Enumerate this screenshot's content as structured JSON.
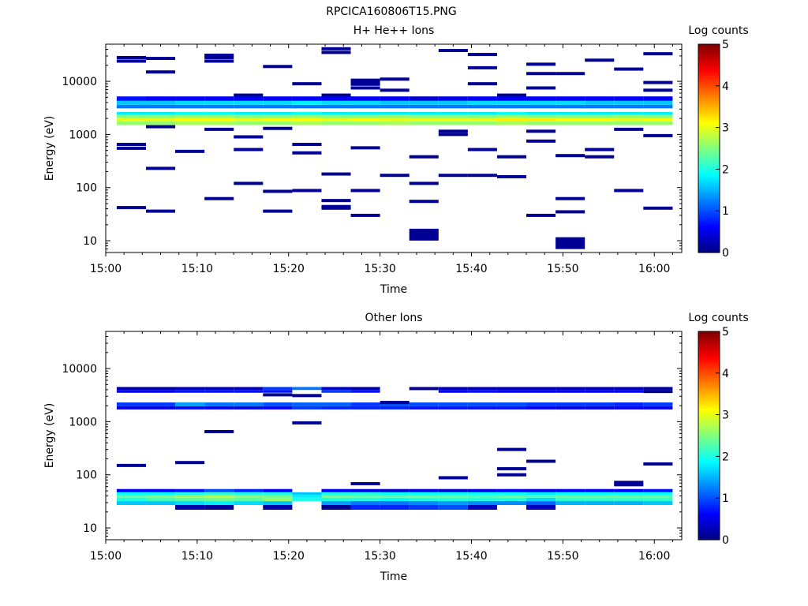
{
  "figure": {
    "title": "RPCICA160806T15.PNG"
  },
  "colorscale": {
    "label": "Log counts",
    "range": [
      0,
      5
    ],
    "ticks": [
      "0",
      "1",
      "2",
      "3",
      "4",
      "5"
    ],
    "colormap": "jet"
  },
  "chart_data": [
    {
      "type": "heatmap",
      "title": "H+ He++ Ions",
      "xlabel": "Time",
      "ylabel": "Energy (eV)",
      "x_ticks": [
        "15:00",
        "15:10",
        "15:20",
        "15:30",
        "15:40",
        "15:50",
        "16:00"
      ],
      "x_range_minutes": [
        0,
        63
      ],
      "y_scale": "log",
      "y_range": [
        6,
        50000
      ],
      "y_ticks": [
        "10",
        "100",
        "1000",
        "10000"
      ],
      "value_label": "Log counts",
      "value_range": [
        0,
        5
      ],
      "time_bins_start_min": [
        1.2,
        4.4,
        7.6,
        10.8,
        14,
        17.2,
        20.4,
        23.6,
        26.8,
        30,
        33.2,
        36.4,
        39.6,
        42.8,
        46,
        49.2,
        52.4,
        55.6,
        58.8
      ],
      "time_bin_width_min": 3.2,
      "bands": [
        {
          "e_lo": 1500,
          "e_hi": 1750,
          "values": [
            2.6,
            2.6,
            2.7,
            2.7,
            2.6,
            2.6,
            2.7,
            2.6,
            2.6,
            2.7,
            2.6,
            2.6,
            2.6,
            2.7,
            2.6,
            2.6,
            2.6,
            2.6,
            2.6
          ]
        },
        {
          "e_lo": 1750,
          "e_hi": 2050,
          "values": [
            3.0,
            3.0,
            3.1,
            3.1,
            3.0,
            3.1,
            3.1,
            3.0,
            3.1,
            3.0,
            3.0,
            3.0,
            3.0,
            3.2,
            3.2,
            3.1,
            3.1,
            3.0,
            3.1
          ]
        },
        {
          "e_lo": 2050,
          "e_hi": 2350,
          "values": [
            2.5,
            2.5,
            2.6,
            2.6,
            2.5,
            2.5,
            2.6,
            2.5,
            2.5,
            2.6,
            2.5,
            2.5,
            2.5,
            2.6,
            2.5,
            2.5,
            2.5,
            2.6,
            2.5
          ]
        },
        {
          "e_lo": 2350,
          "e_hi": 2650,
          "values": [
            1.8,
            1.8,
            1.9,
            1.9,
            1.8,
            1.8,
            1.9,
            1.8,
            1.8,
            1.8,
            1.8,
            1.8,
            1.8,
            1.9,
            1.8,
            1.8,
            1.8,
            1.8,
            1.8
          ]
        },
        {
          "e_lo": 3100,
          "e_hi": 3600,
          "values": [
            1.2,
            1.2,
            1.2,
            1.2,
            1.2,
            1.2,
            1.2,
            1.2,
            1.2,
            1.2,
            1.2,
            1.2,
            1.2,
            1.2,
            1.2,
            1.2,
            1.2,
            1.2,
            1.2
          ]
        },
        {
          "e_lo": 3600,
          "e_hi": 4300,
          "values": [
            1.6,
            1.6,
            1.7,
            1.7,
            1.7,
            1.7,
            1.8,
            1.7,
            1.7,
            1.6,
            1.6,
            1.6,
            1.7,
            1.7,
            1.7,
            1.7,
            1.6,
            1.6,
            1.6
          ]
        },
        {
          "e_lo": 4300,
          "e_hi": 5200,
          "values": [
            0.7,
            0.6,
            0.6,
            0.6,
            0.6,
            0.6,
            0.6,
            0.6,
            0.6,
            0.6,
            0.4,
            0.5,
            0.6,
            0.6,
            0.6,
            0.6,
            0.6,
            0.6,
            0.6
          ]
        }
      ],
      "sparse_bins": [
        {
          "bin": 0,
          "energies": [
            28000,
            24000,
            650,
            550,
            42
          ]
        },
        {
          "bin": 1,
          "energies": [
            27000,
            15000,
            1400,
            230,
            36
          ]
        },
        {
          "bin": 2,
          "energies": [
            480
          ]
        },
        {
          "bin": 3,
          "energies": [
            31000,
            28000,
            24000,
            1250,
            62
          ]
        },
        {
          "bin": 4,
          "energies": [
            5500,
            900,
            520,
            120
          ]
        },
        {
          "bin": 5,
          "energies": [
            19000,
            1300,
            85,
            36
          ]
        },
        {
          "bin": 6,
          "energies": [
            9000,
            650,
            450,
            88
          ]
        },
        {
          "bin": 7,
          "energies": [
            41000,
            35000,
            5500,
            180,
            57,
            44,
            41
          ]
        },
        {
          "bin": 8,
          "energies": [
            10500,
            9500,
            8800,
            7500,
            560,
            88,
            30
          ]
        },
        {
          "bin": 9,
          "energies": [
            11000,
            6800,
            170
          ]
        },
        {
          "bin": 10,
          "energies": [
            380,
            120,
            55,
            13
          ]
        },
        {
          "bin": 11,
          "energies": [
            38000,
            1150,
            1000,
            170
          ]
        },
        {
          "bin": 12,
          "energies": [
            32000,
            18000,
            9000,
            520,
            170
          ]
        },
        {
          "bin": 13,
          "energies": [
            5500,
            380,
            160
          ]
        },
        {
          "bin": 14,
          "energies": [
            21000,
            14000,
            7500,
            1150,
            750,
            30
          ]
        },
        {
          "bin": 15,
          "energies": [
            14000,
            400,
            62,
            35,
            9
          ]
        },
        {
          "bin": 16,
          "energies": [
            25000,
            520,
            380
          ]
        },
        {
          "bin": 17,
          "energies": [
            17000,
            1250,
            88
          ]
        },
        {
          "bin": 18,
          "energies": [
            33000,
            9500,
            6800,
            950,
            41
          ]
        }
      ]
    },
    {
      "type": "heatmap",
      "title": "Other Ions",
      "xlabel": "Time",
      "ylabel": "Energy (eV)",
      "x_ticks": [
        "15:00",
        "15:10",
        "15:20",
        "15:30",
        "15:40",
        "15:50",
        "16:00"
      ],
      "x_range_minutes": [
        0,
        63
      ],
      "y_scale": "log",
      "y_range": [
        6,
        50000
      ],
      "y_ticks": [
        "10",
        "100",
        "1000",
        "10000"
      ],
      "value_label": "Log counts",
      "value_range": [
        0,
        5
      ],
      "time_bins_start_min": [
        1.2,
        4.4,
        7.6,
        10.8,
        14,
        17.2,
        20.4,
        23.6,
        26.8,
        30,
        33.2,
        36.4,
        39.6,
        42.8,
        46,
        49.2,
        52.4,
        55.6,
        58.8
      ],
      "time_bin_width_min": 3.2,
      "bands": [
        {
          "e_lo": 22,
          "e_hi": 27,
          "values": [
            null,
            null,
            0.2,
            0.1,
            null,
            0.2,
            null,
            0.1,
            0.8,
            0.8,
            0.9,
            1.0,
            0.3,
            null,
            0.3,
            null,
            null,
            null,
            null
          ]
        },
        {
          "e_lo": 27,
          "e_hi": 32,
          "values": [
            1.6,
            1.6,
            1.7,
            1.8,
            1.7,
            1.6,
            null,
            1.4,
            1.2,
            1.2,
            1.3,
            1.4,
            1.3,
            1.3,
            1.1,
            1.5,
            1.5,
            1.5,
            1.6
          ]
        },
        {
          "e_lo": 32,
          "e_hi": 37,
          "values": [
            2.0,
            2.2,
            2.3,
            2.4,
            2.3,
            2.6,
            2.0,
            2.0,
            2.0,
            1.9,
            2.0,
            2.0,
            2.0,
            2.0,
            1.7,
            2.1,
            2.1,
            2.1,
            2.1
          ]
        },
        {
          "e_lo": 37,
          "e_hi": 42,
          "values": [
            2.3,
            2.4,
            2.6,
            2.7,
            2.5,
            2.4,
            1.8,
            2.4,
            2.3,
            2.3,
            2.3,
            2.3,
            2.2,
            2.3,
            2.2,
            2.3,
            2.3,
            2.3,
            2.3
          ]
        },
        {
          "e_lo": 42,
          "e_hi": 47,
          "values": [
            1.9,
            1.9,
            2.0,
            2.1,
            2.0,
            2.0,
            1.6,
            2.0,
            2.0,
            1.9,
            1.9,
            1.9,
            1.9,
            1.9,
            1.8,
            1.9,
            1.9,
            1.9,
            1.9
          ]
        },
        {
          "e_lo": 47,
          "e_hi": 54,
          "values": [
            0.6,
            0.6,
            0.7,
            1.0,
            0.8,
            0.6,
            null,
            0.6,
            0.5,
            0.4,
            0.5,
            0.4,
            0.5,
            0.6,
            0.5,
            0.6,
            0.6,
            0.6,
            0.7
          ]
        },
        {
          "e_lo": 1700,
          "e_hi": 1950,
          "values": [
            0.5,
            0.5,
            0.6,
            0.6,
            0.5,
            0.6,
            0.9,
            0.8,
            0.8,
            0.8,
            0.7,
            0.7,
            0.7,
            0.7,
            0.6,
            0.5,
            0.5,
            0.6,
            0.6
          ]
        },
        {
          "e_lo": 1950,
          "e_hi": 2300,
          "values": [
            0.9,
            0.9,
            1.4,
            1.2,
            1.2,
            1.0,
            1.1,
            1.1,
            0.9,
            1.0,
            1.0,
            1.0,
            1.0,
            1.0,
            0.9,
            0.9,
            0.9,
            0.8,
            0.9
          ]
        },
        {
          "e_lo": 3500,
          "e_hi": 3950,
          "values": [
            0.6,
            0.6,
            0.7,
            0.7,
            0.7,
            0.7,
            null,
            0.9,
            0.7,
            null,
            null,
            0.6,
            0.7,
            0.6,
            0.6,
            0.6,
            0.6,
            0.6,
            null
          ]
        },
        {
          "e_lo": 3950,
          "e_hi": 4500,
          "values": [
            0.2,
            0.2,
            0.3,
            0.3,
            0.3,
            0.9,
            1.2,
            0.4,
            0.2,
            null,
            null,
            0.3,
            0.3,
            0.3,
            0.3,
            0.3,
            0.3,
            0.3,
            0.2
          ]
        }
      ],
      "sparse_bins": [
        {
          "bin": 0,
          "energies": [
            150
          ]
        },
        {
          "bin": 2,
          "energies": [
            170
          ]
        },
        {
          "bin": 3,
          "energies": [
            650
          ]
        },
        {
          "bin": 5,
          "energies": [
            3200
          ]
        },
        {
          "bin": 6,
          "energies": [
            950,
            3100
          ]
        },
        {
          "bin": 8,
          "energies": [
            68
          ]
        },
        {
          "bin": 9,
          "energies": [
            2300
          ]
        },
        {
          "bin": 10,
          "energies": [
            4200
          ]
        },
        {
          "bin": 11,
          "energies": [
            88
          ]
        },
        {
          "bin": 13,
          "energies": [
            300,
            130,
            100
          ]
        },
        {
          "bin": 14,
          "energies": [
            180
          ]
        },
        {
          "bin": 17,
          "energies": [
            72,
            65
          ]
        },
        {
          "bin": 18,
          "energies": [
            160,
            3700
          ]
        }
      ]
    }
  ]
}
